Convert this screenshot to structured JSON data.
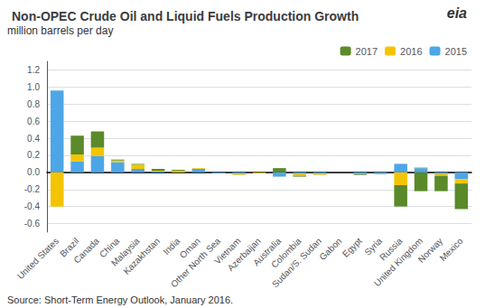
{
  "chart_data": {
    "type": "bar",
    "title": "Non-OPEC Crude Oil and Liquid Fuels Production Growth",
    "subtitle": "million barrels per day",
    "source": "Source: Short-Term Energy Outlook, January 2016.",
    "annotations": [
      "eia"
    ],
    "categories": [
      "United States",
      "Brazil",
      "Canada",
      "China",
      "Malaysia",
      "Kazakhstan",
      "India",
      "Oman",
      "Other North Sea",
      "Vietnam",
      "Azerbaijan",
      "Australia",
      "Colombia",
      "Sudan/S. Sudan",
      "Gabon",
      "Egypt",
      "Syria",
      "Russia",
      "United Kingdom",
      "Norway",
      "Mexico"
    ],
    "series": [
      {
        "name": "2015",
        "color": "#4da6e8",
        "values": [
          0.96,
          0.13,
          0.19,
          0.12,
          0.04,
          0.01,
          0.0,
          0.04,
          -0.01,
          -0.02,
          0.0,
          -0.05,
          -0.02,
          -0.02,
          0.0,
          -0.02,
          -0.02,
          0.1,
          0.05,
          -0.02,
          -0.08
        ]
      },
      {
        "name": "2016",
        "color": "#f5c400",
        "values": [
          -0.4,
          0.08,
          0.1,
          0.02,
          0.05,
          0.01,
          0.02,
          0.01,
          0.0,
          -0.01,
          -0.01,
          0.0,
          -0.02,
          -0.01,
          0.0,
          0.0,
          0.0,
          -0.15,
          0.01,
          -0.02,
          -0.05
        ]
      },
      {
        "name": "2017",
        "color": "#5a8a2a",
        "values": [
          0.0,
          0.22,
          0.19,
          0.01,
          0.01,
          0.02,
          0.01,
          0.0,
          0.0,
          0.0,
          0.0,
          0.05,
          -0.01,
          0.0,
          0.0,
          -0.01,
          0.0,
          -0.25,
          -0.22,
          -0.18,
          -0.3
        ]
      }
    ],
    "stacked": true,
    "ylim": [
      -0.7,
      1.3
    ],
    "yticks": [
      -0.6,
      -0.4,
      -0.2,
      {
        "value": 0,
        "label": "0.0"
      },
      0.2,
      0.4,
      0.6,
      0.8,
      {
        "value": 1,
        "label": "1.0"
      },
      1.2
    ],
    "grid": true,
    "legend": "upper right"
  }
}
